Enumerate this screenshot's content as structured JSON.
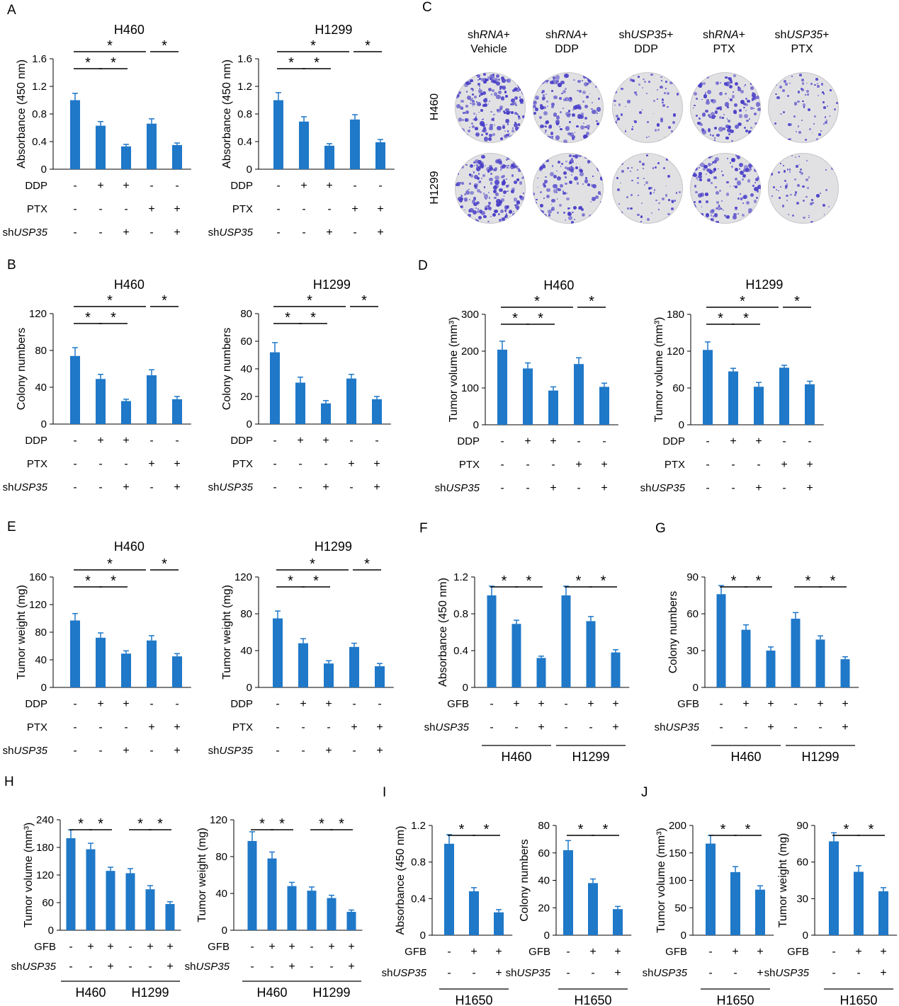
{
  "colors": {
    "bar": "#1f78c8",
    "text": "#000000",
    "colony": "#4a3fc8",
    "plate": "#e1e1e3"
  },
  "panels": {
    "A": "A",
    "B": "B",
    "C": "C",
    "D": "D",
    "E": "E",
    "F": "F",
    "G": "G",
    "H": "H",
    "I": "I",
    "J": "J"
  },
  "common": {
    "row_ddp": "DDP",
    "row_ptx": "PTX",
    "row_gfb": "GFB",
    "row_sh_prefix": "sh",
    "row_sh_gene": "USP35",
    "plus": "+",
    "minus": "-",
    "star": "*"
  },
  "colony_image": {
    "columns": [
      {
        "line1_prefix": "sh",
        "line1_gene": "RNA",
        "line1_suffix": "+",
        "line2": "Vehicle"
      },
      {
        "line1_prefix": "sh",
        "line1_gene": "RNA",
        "line1_suffix": "+",
        "line2": "DDP"
      },
      {
        "line1_prefix": "sh",
        "line1_gene": "USP35",
        "line1_suffix": "+",
        "line2": "DDP"
      },
      {
        "line1_prefix": "sh",
        "line1_gene": "RNA",
        "line1_suffix": "+",
        "line2": "PTX"
      },
      {
        "line1_prefix": "sh",
        "line1_gene": "USP35",
        "line1_suffix": "+",
        "line2": "PTX"
      }
    ],
    "rows": [
      "H460",
      "H1299"
    ],
    "colony_density": [
      [
        1.0,
        0.7,
        0.35,
        0.75,
        0.35
      ],
      [
        1.0,
        0.6,
        0.3,
        0.65,
        0.3
      ]
    ]
  },
  "chart_data": [
    {
      "id": "A1",
      "panel": "A",
      "type": "bar",
      "title": "H460",
      "ylabel": "Absorbance (450 nm)",
      "ylim": [
        0,
        1.6
      ],
      "yticks": [
        0,
        0.4,
        0.8,
        1.2,
        1.6
      ],
      "values": [
        1.0,
        0.63,
        0.33,
        0.66,
        0.35
      ],
      "errors": [
        0.1,
        0.06,
        0.03,
        0.07,
        0.03
      ],
      "conditions": {
        "DDP": [
          "-",
          "+",
          "+",
          "-",
          "-"
        ],
        "PTX": [
          "-",
          "-",
          "-",
          "+",
          "+"
        ],
        "shUSP35": [
          "-",
          "-",
          "+",
          "-",
          "+"
        ]
      },
      "significance": [
        [
          0,
          1,
          "*"
        ],
        [
          1,
          2,
          "*"
        ],
        [
          0,
          3,
          "*"
        ],
        [
          3,
          4,
          "*"
        ]
      ]
    },
    {
      "id": "A2",
      "panel": "",
      "type": "bar",
      "title": "H1299",
      "ylabel": "Absorbance (450 nm)",
      "ylim": [
        0,
        1.6
      ],
      "yticks": [
        0,
        0.4,
        0.8,
        1.2,
        1.6
      ],
      "values": [
        1.0,
        0.69,
        0.34,
        0.72,
        0.39
      ],
      "errors": [
        0.11,
        0.07,
        0.03,
        0.07,
        0.04
      ],
      "conditions": {
        "DDP": [
          "-",
          "+",
          "+",
          "-",
          "-"
        ],
        "PTX": [
          "-",
          "-",
          "-",
          "+",
          "+"
        ],
        "shUSP35": [
          "-",
          "-",
          "+",
          "-",
          "+"
        ]
      },
      "significance": [
        [
          0,
          1,
          "*"
        ],
        [
          1,
          2,
          "*"
        ],
        [
          0,
          3,
          "*"
        ],
        [
          3,
          4,
          "*"
        ]
      ]
    },
    {
      "id": "B1",
      "panel": "B",
      "type": "bar",
      "title": "H460",
      "ylabel": "Colony numbers",
      "ylim": [
        0,
        120
      ],
      "yticks": [
        0,
        40,
        80,
        120
      ],
      "values": [
        74,
        49,
        25,
        53,
        27
      ],
      "errors": [
        9,
        5,
        2,
        6,
        3
      ],
      "conditions": {
        "DDP": [
          "-",
          "+",
          "+",
          "-",
          "-"
        ],
        "PTX": [
          "-",
          "-",
          "-",
          "+",
          "+"
        ],
        "shUSP35": [
          "-",
          "-",
          "+",
          "-",
          "+"
        ]
      },
      "significance": [
        [
          0,
          1,
          "*"
        ],
        [
          1,
          2,
          "*"
        ],
        [
          0,
          3,
          "*"
        ],
        [
          3,
          4,
          "*"
        ]
      ]
    },
    {
      "id": "B2",
      "panel": "",
      "type": "bar",
      "title": "H1299",
      "ylabel": "Colony numbers",
      "ylim": [
        0,
        80
      ],
      "yticks": [
        0,
        20,
        40,
        60,
        80
      ],
      "values": [
        52,
        30,
        15,
        33,
        18
      ],
      "errors": [
        7,
        4,
        2,
        3,
        2
      ],
      "conditions": {
        "DDP": [
          "-",
          "+",
          "+",
          "-",
          "-"
        ],
        "PTX": [
          "-",
          "-",
          "-",
          "+",
          "+"
        ],
        "shUSP35": [
          "-",
          "-",
          "+",
          "-",
          "+"
        ]
      },
      "significance": [
        [
          0,
          1,
          "*"
        ],
        [
          1,
          2,
          "*"
        ],
        [
          0,
          3,
          "*"
        ],
        [
          3,
          4,
          "*"
        ]
      ]
    },
    {
      "id": "D1",
      "panel": "D",
      "type": "bar",
      "title": "H460",
      "ylabel": "Tumor volume (mm³)",
      "ylim": [
        0,
        300
      ],
      "yticks": [
        0,
        100,
        200,
        300
      ],
      "values": [
        204,
        153,
        93,
        165,
        103
      ],
      "errors": [
        23,
        15,
        10,
        17,
        10
      ],
      "conditions": {
        "DDP": [
          "-",
          "+",
          "+",
          "-",
          "-"
        ],
        "PTX": [
          "-",
          "-",
          "-",
          "+",
          "+"
        ],
        "shUSP35": [
          "-",
          "-",
          "+",
          "-",
          "+"
        ]
      },
      "significance": [
        [
          0,
          1,
          "*"
        ],
        [
          1,
          2,
          "*"
        ],
        [
          0,
          3,
          "*"
        ],
        [
          3,
          4,
          "*"
        ]
      ]
    },
    {
      "id": "D2",
      "panel": "",
      "type": "bar",
      "title": "H1299",
      "ylabel": "Tumor volume (mm³)",
      "ylim": [
        0,
        180
      ],
      "yticks": [
        0,
        60,
        120,
        180
      ],
      "values": [
        122,
        87,
        62,
        93,
        66
      ],
      "errors": [
        13,
        5,
        7,
        4,
        5
      ],
      "conditions": {
        "DDP": [
          "-",
          "+",
          "+",
          "-",
          "-"
        ],
        "PTX": [
          "-",
          "-",
          "-",
          "+",
          "+"
        ],
        "shUSP35": [
          "-",
          "-",
          "+",
          "-",
          "+"
        ]
      },
      "significance": [
        [
          0,
          1,
          "*"
        ],
        [
          1,
          2,
          "*"
        ],
        [
          0,
          3,
          "*"
        ],
        [
          3,
          4,
          "*"
        ]
      ]
    },
    {
      "id": "E1",
      "panel": "E",
      "type": "bar",
      "title": "H460",
      "ylabel": "Tumor weight (mg)",
      "ylim": [
        0,
        160
      ],
      "yticks": [
        0,
        40,
        80,
        120,
        160
      ],
      "values": [
        97,
        72,
        49,
        68,
        45
      ],
      "errors": [
        10,
        7,
        4,
        7,
        4
      ],
      "conditions": {
        "DDP": [
          "-",
          "+",
          "+",
          "-",
          "-"
        ],
        "PTX": [
          "-",
          "-",
          "-",
          "+",
          "+"
        ],
        "shUSP35": [
          "-",
          "-",
          "+",
          "-",
          "+"
        ]
      },
      "significance": [
        [
          0,
          1,
          "*"
        ],
        [
          1,
          2,
          "*"
        ],
        [
          0,
          3,
          "*"
        ],
        [
          3,
          4,
          "*"
        ]
      ]
    },
    {
      "id": "E2",
      "panel": "",
      "type": "bar",
      "title": "H1299",
      "ylabel": "Tumor weight (mg)",
      "ylim": [
        0,
        120
      ],
      "yticks": [
        0,
        40,
        80,
        120
      ],
      "values": [
        75,
        48,
        26,
        44,
        23
      ],
      "errors": [
        8,
        5,
        3,
        4,
        3
      ],
      "conditions": {
        "DDP": [
          "-",
          "+",
          "+",
          "-",
          "-"
        ],
        "PTX": [
          "-",
          "-",
          "-",
          "+",
          "+"
        ],
        "shUSP35": [
          "-",
          "-",
          "+",
          "-",
          "+"
        ]
      },
      "significance": [
        [
          0,
          1,
          "*"
        ],
        [
          1,
          2,
          "*"
        ],
        [
          0,
          3,
          "*"
        ],
        [
          3,
          4,
          "*"
        ]
      ]
    },
    {
      "id": "F",
      "panel": "F",
      "type": "bar",
      "title": "",
      "ylabel": "Absorbance (450 nm)",
      "ylim": [
        0,
        1.2
      ],
      "yticks": [
        0,
        0.4,
        0.8,
        1.2
      ],
      "values": [
        1.0,
        0.69,
        0.32,
        1.0,
        0.72,
        0.38
      ],
      "errors": [
        0.1,
        0.04,
        0.02,
        0.1,
        0.05,
        0.03
      ],
      "conditions": {
        "GFB": [
          "-",
          "+",
          "+",
          "-",
          "+",
          "+"
        ],
        "shUSP35": [
          "-",
          "-",
          "+",
          "-",
          "-",
          "+"
        ]
      },
      "groups": [
        {
          "label": "H460",
          "from": 0,
          "to": 2
        },
        {
          "label": "H1299",
          "from": 3,
          "to": 5
        }
      ],
      "significance": [
        [
          0,
          1,
          "*"
        ],
        [
          1,
          2,
          "*"
        ],
        [
          3,
          4,
          "*"
        ],
        [
          4,
          5,
          "*"
        ]
      ]
    },
    {
      "id": "G",
      "panel": "G",
      "type": "bar",
      "title": "",
      "ylabel": "Colony numbers",
      "ylim": [
        0,
        90
      ],
      "yticks": [
        0,
        30,
        60,
        90
      ],
      "values": [
        76,
        47,
        30,
        56,
        39,
        23
      ],
      "errors": [
        7,
        4,
        3,
        5,
        3,
        2
      ],
      "conditions": {
        "GFB": [
          "-",
          "+",
          "+",
          "-",
          "+",
          "+"
        ],
        "shUSP35": [
          "-",
          "-",
          "+",
          "-",
          "-",
          "+"
        ]
      },
      "groups": [
        {
          "label": "H460",
          "from": 0,
          "to": 2
        },
        {
          "label": "H1299",
          "from": 3,
          "to": 5
        }
      ],
      "significance": [
        [
          0,
          1,
          "*"
        ],
        [
          1,
          2,
          "*"
        ],
        [
          3,
          4,
          "*"
        ],
        [
          4,
          5,
          "*"
        ]
      ]
    },
    {
      "id": "H1",
      "panel": "H",
      "type": "bar",
      "title": "",
      "ylabel": "Tumor volume (mm³)",
      "ylim": [
        0,
        240
      ],
      "yticks": [
        0,
        60,
        120,
        180,
        240
      ],
      "values": [
        200,
        176,
        129,
        124,
        89,
        57
      ],
      "errors": [
        18,
        13,
        8,
        10,
        8,
        5
      ],
      "conditions": {
        "GFB": [
          "-",
          "+",
          "+",
          "-",
          "+",
          "+"
        ],
        "shUSP35": [
          "-",
          "-",
          "+",
          "-",
          "-",
          "+"
        ]
      },
      "groups": [
        {
          "label": "H460",
          "from": 0,
          "to": 2
        },
        {
          "label": "H1299",
          "from": 3,
          "to": 5
        }
      ],
      "significance": [
        [
          0,
          1,
          "*"
        ],
        [
          1,
          2,
          "*"
        ],
        [
          3,
          4,
          "*"
        ],
        [
          4,
          5,
          "*"
        ]
      ]
    },
    {
      "id": "H2",
      "panel": "",
      "type": "bar",
      "title": "",
      "ylabel": "Tumor weight (mg)",
      "ylim": [
        0,
        120
      ],
      "yticks": [
        0,
        40,
        80,
        120
      ],
      "values": [
        97,
        78,
        48,
        43,
        35,
        20
      ],
      "errors": [
        10,
        7,
        4,
        4,
        3,
        2
      ],
      "conditions": {
        "GFB": [
          "-",
          "+",
          "+",
          "-",
          "+",
          "+"
        ],
        "shUSP35": [
          "-",
          "-",
          "+",
          "-",
          "-",
          "+"
        ]
      },
      "groups": [
        {
          "label": "H460",
          "from": 0,
          "to": 2
        },
        {
          "label": "H1299",
          "from": 3,
          "to": 5
        }
      ],
      "significance": [
        [
          0,
          1,
          "*"
        ],
        [
          1,
          2,
          "*"
        ],
        [
          3,
          4,
          "*"
        ],
        [
          4,
          5,
          "*"
        ]
      ]
    },
    {
      "id": "I1",
      "panel": "I",
      "type": "bar",
      "title": "",
      "ylabel": "Absorbance (450 nm)",
      "ylim": [
        0,
        1.2
      ],
      "yticks": [
        0,
        0.4,
        0.8,
        1.2
      ],
      "values": [
        1.0,
        0.48,
        0.25
      ],
      "errors": [
        0.1,
        0.04,
        0.03
      ],
      "conditions": {
        "GFB": [
          "-",
          "+",
          "+"
        ],
        "shUSP35": [
          "-",
          "-",
          "+"
        ]
      },
      "groups": [
        {
          "label": "H1650",
          "from": 0,
          "to": 2
        }
      ],
      "significance": [
        [
          0,
          1,
          "*"
        ],
        [
          1,
          2,
          "*"
        ]
      ]
    },
    {
      "id": "I2",
      "panel": "",
      "type": "bar",
      "title": "",
      "ylabel": "Colony numbers",
      "ylim": [
        0,
        80
      ],
      "yticks": [
        0,
        20,
        40,
        60,
        80
      ],
      "values": [
        62,
        38,
        19
      ],
      "errors": [
        7,
        3,
        2
      ],
      "conditions": {
        "GFB": [
          "-",
          "+",
          "+"
        ],
        "shUSP35": [
          "-",
          "-",
          "+"
        ]
      },
      "groups": [
        {
          "label": "H1650",
          "from": 0,
          "to": 2
        }
      ],
      "significance": [
        [
          0,
          1,
          "*"
        ],
        [
          1,
          2,
          "*"
        ]
      ]
    },
    {
      "id": "J1",
      "panel": "J",
      "type": "bar",
      "title": "",
      "ylabel": "Tumor volume (mm³)",
      "ylim": [
        0,
        200
      ],
      "yticks": [
        0,
        50,
        100,
        150,
        200
      ],
      "values": [
        167,
        115,
        83
      ],
      "errors": [
        15,
        10,
        7
      ],
      "conditions": {
        "GFB": [
          "-",
          "+",
          "+"
        ],
        "shUSP35": [
          "-",
          "-",
          "+"
        ]
      },
      "groups": [
        {
          "label": "H1650",
          "from": 0,
          "to": 2
        }
      ],
      "significance": [
        [
          0,
          1,
          "*"
        ],
        [
          1,
          2,
          "*"
        ]
      ]
    },
    {
      "id": "J2",
      "panel": "",
      "type": "bar",
      "title": "",
      "ylabel": "Tumor weight (mg)",
      "ylim": [
        0,
        90
      ],
      "yticks": [
        0,
        30,
        60,
        90
      ],
      "values": [
        77,
        52,
        36
      ],
      "errors": [
        7,
        5,
        3
      ],
      "conditions": {
        "GFB": [
          "-",
          "+",
          "+"
        ],
        "shUSP35": [
          "-",
          "-",
          "+"
        ]
      },
      "groups": [
        {
          "label": "H1650",
          "from": 0,
          "to": 2
        }
      ],
      "significance": [
        [
          0,
          1,
          "*"
        ],
        [
          1,
          2,
          "*"
        ]
      ]
    }
  ]
}
